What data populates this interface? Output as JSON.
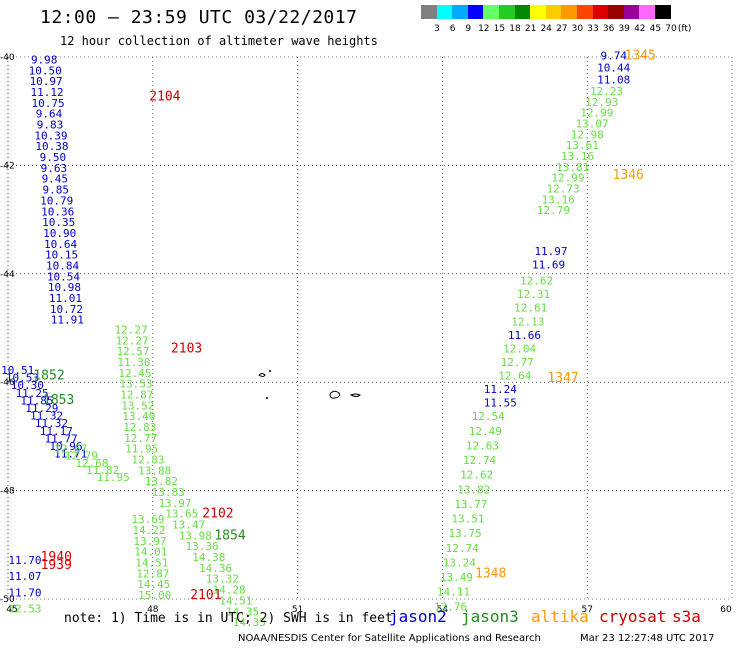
{
  "header": {
    "title": "12:00 – 23:59 UTC 03/22/2017",
    "subtitle": "12 hour collection of altimeter wave heights"
  },
  "color_scale": {
    "labels": [
      "3",
      "6",
      "9",
      "12",
      "15",
      "18",
      "21",
      "24",
      "27",
      "30",
      "33",
      "36",
      "39",
      "42",
      "45",
      "70"
    ],
    "unit": "(ft)",
    "colors": [
      "#808080",
      "#00ffff",
      "#00aaff",
      "#0000ff",
      "#66ff66",
      "#22cc22",
      "#008800",
      "#ffff00",
      "#ffcc00",
      "#ff9900",
      "#ff4400",
      "#dd0000",
      "#990000",
      "#990099",
      "#ff66ff",
      "#000000"
    ]
  },
  "axes": {
    "lon_ticks": [
      "45",
      "48",
      "51",
      "54",
      "57",
      "60"
    ],
    "lat_ticks": [
      "-40",
      "-42",
      "-44",
      "-46",
      "-48",
      "-50"
    ],
    "xlim": [
      45,
      60
    ],
    "ylim": [
      -50,
      -40
    ]
  },
  "satellite_colors": {
    "jason2": "#0000cc",
    "jason3": "#228b22",
    "jason3_light": "#66dd44",
    "altika": "#ff9900",
    "cryosat": "#cc0000",
    "s3a": "#cc0000"
  },
  "tracks": [
    {
      "sat": "jason2",
      "lon_start": 45.75,
      "lat_start": -40.12,
      "lon_step": 0.02,
      "lat_step": 0.2,
      "values": [
        "9.98",
        "10.50",
        "10.97",
        "11.12",
        "10.75",
        "9.64",
        "9.83",
        "10.39",
        "10.38",
        "9.50",
        "9.63",
        "9.45",
        "9.85",
        "10.79",
        "10.36",
        "10.35",
        "10.90",
        "10.64",
        "10.15",
        "10.84",
        "10.54",
        "10.98",
        "11.01",
        "10.72",
        "11.91"
      ]
    },
    {
      "sat": "jason3",
      "lon_start": 47.55,
      "lat_start": -45.1,
      "lon_step": 0.02,
      "lat_step": 0.2,
      "values": [
        "12.27",
        "12.27",
        "12.57",
        "11.30",
        "12.45",
        "13.53",
        "12.87",
        "13.52",
        "13.40",
        "12.83",
        "12.77",
        "11.95"
      ]
    },
    {
      "sat": "jason3",
      "lon_start": 47.9,
      "lat_start": -47.5,
      "lon_step": 0.14,
      "lat_step": 0.2,
      "values": [
        "12.83",
        "13.88",
        "13.82",
        "13.83",
        "13.97",
        "13.65",
        "13.47",
        "13.98",
        "13.36",
        "14.38",
        "14.36",
        "13.32",
        "14.28",
        "14.51",
        "14.35",
        "14.35"
      ]
    },
    {
      "sat": "jason3",
      "lon_start": 47.9,
      "lat_start": -48.6,
      "lon_step": 0.02,
      "lat_step": 0.2,
      "values": [
        "13.69",
        "14.22",
        "13.97",
        "14.01",
        "14.51",
        "12.87",
        "14.45",
        "15.00"
      ]
    },
    {
      "sat": "jason2",
      "lon_start": 45.2,
      "lat_start": -45.85,
      "lon_step": 0.1,
      "lat_step": 0.14,
      "values": [
        "10.51",
        "10.53",
        "10.30",
        "11.25",
        "11.85",
        "11.29",
        "11.32",
        "11.32",
        "11.17",
        "11.77",
        "10.96",
        "11.71"
      ]
    },
    {
      "sat": "jason3",
      "lon_start": 46.3,
      "lat_start": -47.3,
      "lon_step": 0.22,
      "lat_step": 0.13,
      "values": [
        "12.67",
        "12.79",
        "12.68",
        "11.82",
        "11.95"
      ]
    },
    {
      "sat": "jason2",
      "lon_start": 45.35,
      "lat_start": -49.35,
      "lon_step": 0.0,
      "lat_step": 0.3,
      "values": [
        "11.70",
        "11.07",
        "11.70"
      ]
    },
    {
      "sat": "jason3",
      "lon_start": 45.35,
      "lat_start": -50.25,
      "lon_step": 0.0,
      "lat_step": 0.3,
      "values": [
        "12.53"
      ]
    },
    {
      "sat": "jason2",
      "lon_start": 57.55,
      "lat_start": -40.05,
      "lon_step": 0.0,
      "lat_step": 0.22,
      "values": [
        "9.74",
        "10.44",
        "11.08"
      ]
    },
    {
      "sat": "jason3",
      "lon_start": 57.4,
      "lat_start": -40.7,
      "lon_step": -0.1,
      "lat_step": 0.2,
      "values": [
        "12.23",
        "12.93",
        "12.99",
        "13.07",
        "12.98",
        "13.61",
        "13.16",
        "13.81",
        "12.99",
        "12.73",
        "13.16",
        "12.79"
      ]
    },
    {
      "sat": "jason2",
      "lon_start": 56.25,
      "lat_start": -43.65,
      "lon_step": -0.05,
      "lat_step": 0.25,
      "values": [
        "11.97",
        "11.69"
      ]
    },
    {
      "sat": "jason3",
      "lon_start": 55.95,
      "lat_start": -44.2,
      "lon_step": -0.06,
      "lat_step": 0.25,
      "values": [
        "12.62",
        "12.31",
        "12.61",
        "12.13"
      ]
    },
    {
      "sat": "jason2",
      "lon_start": 55.7,
      "lat_start": -45.2,
      "lon_step": 0.0,
      "lat_step": 0.2,
      "values": [
        "11.66"
      ]
    },
    {
      "sat": "jason3",
      "lon_start": 55.6,
      "lat_start": -45.45,
      "lon_step": -0.05,
      "lat_step": 0.25,
      "values": [
        "12.04",
        "12.77",
        "12.64"
      ]
    },
    {
      "sat": "jason2",
      "lon_start": 55.2,
      "lat_start": -46.2,
      "lon_step": 0.0,
      "lat_step": 0.25,
      "values": [
        "11.24",
        "11.55"
      ]
    },
    {
      "sat": "jason3",
      "lon_start": 54.95,
      "lat_start": -46.7,
      "lon_step": -0.06,
      "lat_step": 0.27,
      "values": [
        "12.54",
        "12.49",
        "12.63",
        "12.74",
        "12.62",
        "13.82",
        "13.77",
        "13.51",
        "13.75",
        "12.74",
        "13.24",
        "13.49",
        "14.11",
        "13.76"
      ]
    }
  ],
  "time_labels": [
    {
      "text": "2104",
      "sat": "cryosat",
      "lon": 48.25,
      "lat": -40.8
    },
    {
      "text": "2103",
      "sat": "cryosat",
      "lon": 48.7,
      "lat": -45.45
    },
    {
      "text": "2102",
      "sat": "cryosat",
      "lon": 49.35,
      "lat": -48.5
    },
    {
      "text": "2101",
      "sat": "cryosat",
      "lon": 49.1,
      "lat": -50.0
    },
    {
      "text": "1852",
      "sat": "jason3",
      "lon": 45.85,
      "lat": -45.95
    },
    {
      "text": "1853",
      "sat": "jason3",
      "lon": 46.05,
      "lat": -46.4
    },
    {
      "text": "1854",
      "sat": "jason3",
      "lon": 49.6,
      "lat": -48.9
    },
    {
      "text": "1940",
      "sat": "cryosat",
      "lon": 46.0,
      "lat": -49.3
    },
    {
      "text": "1939",
      "sat": "s3a",
      "lon": 46.0,
      "lat": -49.45
    },
    {
      "text": "1345",
      "sat": "altika",
      "lon": 58.1,
      "lat": -40.05
    },
    {
      "text": "1346",
      "sat": "altika",
      "lon": 57.85,
      "lat": -42.25
    },
    {
      "text": "1347",
      "sat": "altika",
      "lon": 56.5,
      "lat": -46.0
    },
    {
      "text": "1348",
      "sat": "altika",
      "lon": 55.0,
      "lat": -49.6
    }
  ],
  "footer": {
    "note": "note: 1) Time is in UTC; 2) SWH is in feet",
    "legend": [
      {
        "label": "jason2",
        "color": "#0000cc"
      },
      {
        "label": "jason3",
        "color": "#228b22"
      },
      {
        "label": "altika",
        "color": "#ff9900"
      },
      {
        "label": "cryosat",
        "color": "#cc0000"
      },
      {
        "label": "s3a",
        "color": "#cc0000"
      }
    ],
    "credit": "NOAA/NESDIS Center for Satellite Applications and Research",
    "timestamp": "Mar 23 12:27:48 UTC 2017"
  }
}
